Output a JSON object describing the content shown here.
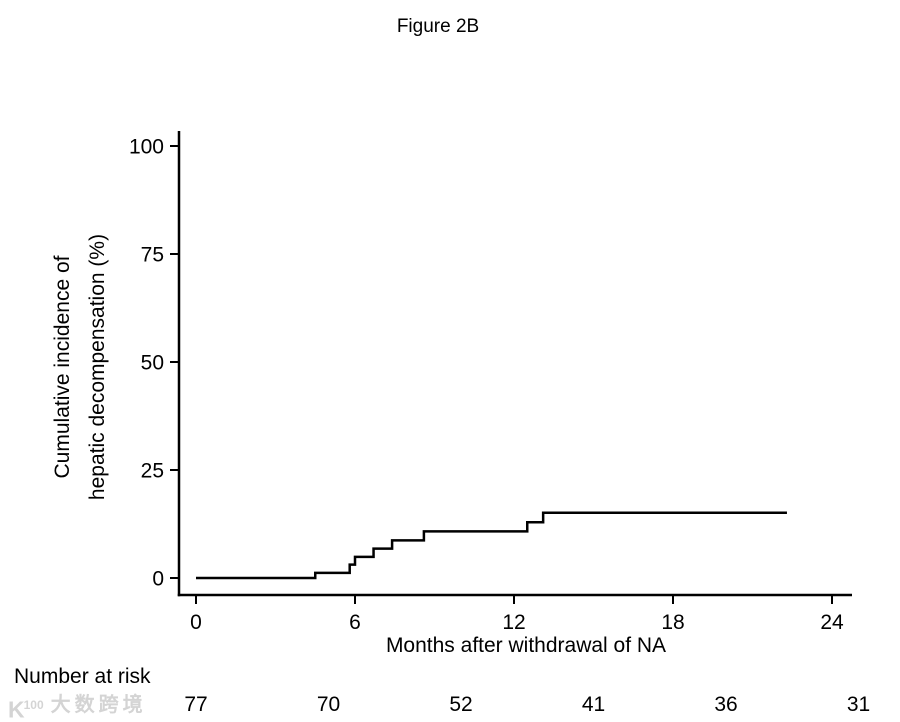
{
  "figure": {
    "title": "Figure 2B",
    "watermark": {
      "logo_main": "K",
      "logo_sup": "100",
      "text": "大数跨境"
    }
  },
  "chart_data": {
    "type": "line",
    "style": "step",
    "title": "Figure 2B",
    "xlabel": "Months after withdrawal of NA",
    "ylabel_lines": [
      "Cumulative incidence of",
      "hepatic decompensation (%)"
    ],
    "xlim": [
      0,
      24
    ],
    "ylim": [
      0,
      100
    ],
    "x_ticks": [
      0,
      6,
      12,
      18,
      24
    ],
    "y_ticks": [
      0,
      25,
      50,
      75,
      100
    ],
    "grid": false,
    "legend": "none",
    "series": [
      {
        "name": "Cumulative incidence of hepatic decompensation (%)",
        "color": "#000000",
        "points": [
          [
            0,
            0
          ],
          [
            4.5,
            1.2
          ],
          [
            5.8,
            3.1
          ],
          [
            6.0,
            4.9
          ],
          [
            6.7,
            6.8
          ],
          [
            7.4,
            8.7
          ],
          [
            8.6,
            10.8
          ],
          [
            12.5,
            12.9
          ],
          [
            13.1,
            15.1
          ]
        ],
        "x_end": 22.3
      }
    ],
    "number_at_risk": {
      "label": "Number at risk",
      "times": [
        0,
        5,
        10,
        15,
        20,
        25
      ],
      "values": [
        77,
        70,
        52,
        41,
        36,
        31
      ]
    }
  }
}
